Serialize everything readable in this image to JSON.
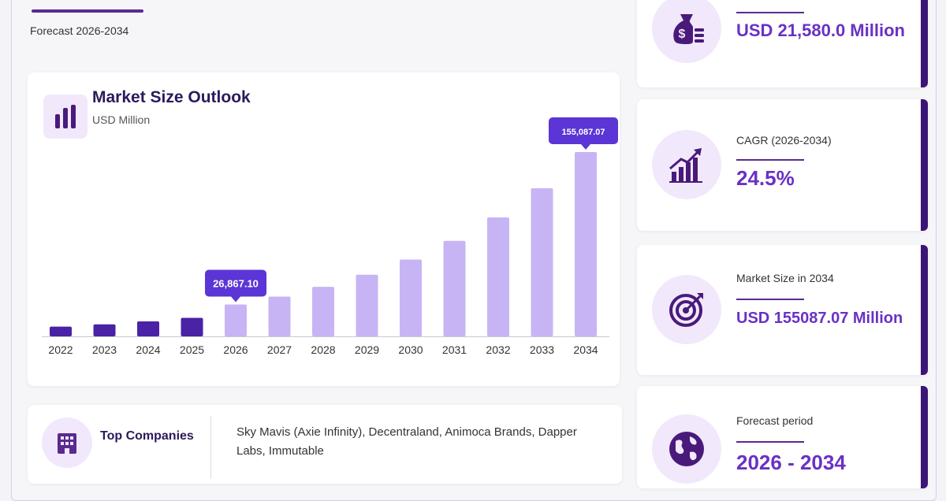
{
  "header": {
    "subtitle": "Forecast 2026-2034"
  },
  "chart_card": {
    "title": "Market Size Outlook",
    "unit": "USD Million"
  },
  "chart_data": {
    "type": "bar",
    "title": "Market Size Outlook",
    "unit": "USD Million",
    "categories": [
      "2022",
      "2023",
      "2024",
      "2025",
      "2026",
      "2027",
      "2028",
      "2029",
      "2030",
      "2031",
      "2032",
      "2033",
      "2034"
    ],
    "values": [
      8200,
      10100,
      12600,
      15600,
      26867.1,
      33500,
      41700,
      51900,
      64600,
      80400,
      100100,
      124600,
      155087.07
    ],
    "historical_years": [
      "2022",
      "2023",
      "2024",
      "2025"
    ],
    "labels": [
      {
        "category": "2026",
        "text": "26,867.10"
      },
      {
        "category": "2034",
        "text": "155,087.07"
      }
    ],
    "colors": {
      "historical": "#4a22a6",
      "forecast": "#c7b4f4",
      "callout": "#5b35d5",
      "axis": "#c8c8d0"
    },
    "ylim": [
      0,
      155087.07
    ],
    "grid": false
  },
  "companies": {
    "title": "Top Companies",
    "list": "Sky Mavis (Axie Infinity), Decentraland, Animoca Brands, Dapper Labs, Immutable"
  },
  "stats": [
    {
      "label": "",
      "value": "USD 21,580.0 Million",
      "icon": "money-bag-icon"
    },
    {
      "label": "CAGR (2026-2034)",
      "value": "24.5%",
      "icon": "growth-chart-icon"
    },
    {
      "label": "Market Size in 2034",
      "value": "USD 155087.07 Million",
      "icon": "target-icon"
    },
    {
      "label": "Forecast period",
      "value": "2026 - 2034",
      "icon": "globe-icon"
    }
  ]
}
